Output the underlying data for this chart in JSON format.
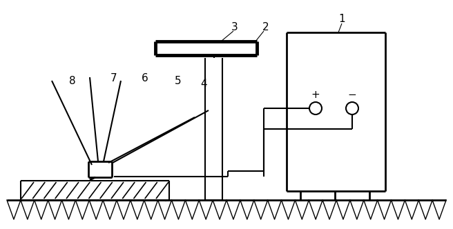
{
  "bg_color": "#ffffff",
  "line_color": "#000000",
  "fig_width": 6.56,
  "fig_height": 3.32,
  "dpi": 100
}
